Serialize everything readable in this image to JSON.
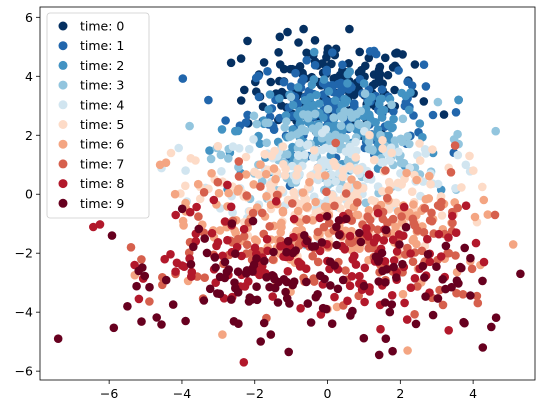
{
  "chart_data": {
    "type": "scatter",
    "title": "",
    "xlabel": "",
    "ylabel": "",
    "xlim": [
      -7.9,
      5.7
    ],
    "ylim": [
      -6.3,
      6.35
    ],
    "xticks": [
      -6,
      -4,
      -2,
      0,
      2,
      4
    ],
    "yticks": [
      -6,
      -4,
      -2,
      0,
      2,
      4,
      6
    ],
    "xtick_labels": [
      "−6",
      "−4",
      "−2",
      "0",
      "2",
      "4"
    ],
    "ytick_labels": [
      "−6",
      "−4",
      "−2",
      "0",
      "2",
      "4",
      "6"
    ],
    "grid": false,
    "legend_position": "top-left",
    "series": [
      {
        "name": "time: 0",
        "color": "#053061",
        "center": [
          0.1,
          3.6
        ],
        "spread": [
          1.2,
          0.8
        ],
        "points": 150,
        "values": [
          [
            -1.1,
            5.5
          ],
          [
            0.6,
            5.6
          ],
          [
            -2.2,
            5.2
          ],
          [
            0.0,
            4.8
          ],
          [
            2.4,
            4.4
          ],
          [
            3.2,
            2.7
          ],
          [
            -1.3,
            4.4
          ],
          [
            1.8,
            4.3
          ]
        ]
      },
      {
        "name": "time: 1",
        "color": "#2166ac",
        "center": [
          0.2,
          3.0
        ],
        "spread": [
          1.2,
          0.8
        ],
        "points": 150,
        "values": [
          [
            -2.8,
            2.5
          ],
          [
            3.6,
            3.2
          ],
          [
            -1.2,
            3.8
          ],
          [
            1.1,
            3.2
          ],
          [
            2.5,
            2.1
          ],
          [
            -0.4,
            2.6
          ]
        ]
      },
      {
        "name": "time: 2",
        "color": "#4393c3",
        "center": [
          0.2,
          2.2
        ],
        "spread": [
          1.3,
          0.8
        ],
        "points": 150,
        "values": [
          [
            3.6,
            3.2
          ],
          [
            -2.9,
            2.2
          ],
          [
            2.9,
            1.4
          ],
          [
            -0.6,
            2.9
          ],
          [
            1.5,
            2.6
          ]
        ]
      },
      {
        "name": "time: 3",
        "color": "#92c5de",
        "center": [
          0.2,
          1.5
        ],
        "spread": [
          1.4,
          0.8
        ],
        "points": 150,
        "values": [
          [
            3.6,
            1.7
          ],
          [
            -3.2,
            1.2
          ],
          [
            2.4,
            0.9
          ],
          [
            0.5,
            1.9
          ],
          [
            -1.9,
            1.0
          ]
        ]
      },
      {
        "name": "time: 4",
        "color": "#d1e5f0",
        "center": [
          0.1,
          0.7
        ],
        "spread": [
          1.6,
          0.8
        ],
        "points": 150,
        "values": [
          [
            3.8,
            1.0
          ],
          [
            -3.9,
            0.8
          ],
          [
            -2.4,
            0.2
          ],
          [
            1.2,
            0.5
          ],
          [
            0.0,
            -0.2
          ]
        ]
      },
      {
        "name": "time: 5",
        "color": "#fddbc7",
        "center": [
          0.0,
          -0.1
        ],
        "spread": [
          1.8,
          0.9
        ],
        "points": 150,
        "values": [
          [
            -4.3,
            1.4
          ],
          [
            3.9,
            1.3
          ],
          [
            -3.1,
            0.5
          ],
          [
            2.1,
            -0.9
          ],
          [
            -0.9,
            -0.7
          ]
        ]
      },
      {
        "name": "time: 6",
        "color": "#f4a582",
        "center": [
          0.0,
          -1.0
        ],
        "spread": [
          2.0,
          1.0
        ],
        "points": 150,
        "values": [
          [
            -4.6,
            1.0
          ],
          [
            2.2,
            -5.3
          ],
          [
            5.1,
            -1.7
          ],
          [
            0.0,
            -3.9
          ],
          [
            -3.9,
            -0.3
          ],
          [
            4.2,
            -2.4
          ]
        ]
      },
      {
        "name": "time: 7",
        "color": "#d6604d",
        "center": [
          0.0,
          -1.6
        ],
        "spread": [
          2.2,
          1.0
        ],
        "points": 150,
        "values": [
          [
            -5.4,
            -1.8
          ],
          [
            4.6,
            -0.7
          ],
          [
            -2.6,
            -0.9
          ],
          [
            3.3,
            -2.0
          ],
          [
            0.6,
            -1.6
          ]
        ]
      },
      {
        "name": "time: 8",
        "color": "#b2182b",
        "center": [
          -0.2,
          -2.3
        ],
        "spread": [
          2.3,
          1.0
        ],
        "points": 150,
        "values": [
          [
            -2.3,
            -5.7
          ],
          [
            4.3,
            -2.3
          ],
          [
            -5.3,
            -2.4
          ],
          [
            -0.8,
            -2.3
          ],
          [
            1.9,
            -2.9
          ]
        ]
      },
      {
        "name": "time: 9",
        "color": "#67001f",
        "center": [
          -0.3,
          -3.0
        ],
        "spread": [
          2.4,
          1.0
        ],
        "points": 150,
        "values": [
          [
            -7.4,
            -4.9
          ],
          [
            5.3,
            -2.7
          ],
          [
            -5.5,
            -3.8
          ],
          [
            1.6,
            -4.9
          ],
          [
            4.5,
            -4.5
          ],
          [
            -3.9,
            -4.3
          ],
          [
            2.9,
            -4.1
          ]
        ]
      }
    ]
  }
}
